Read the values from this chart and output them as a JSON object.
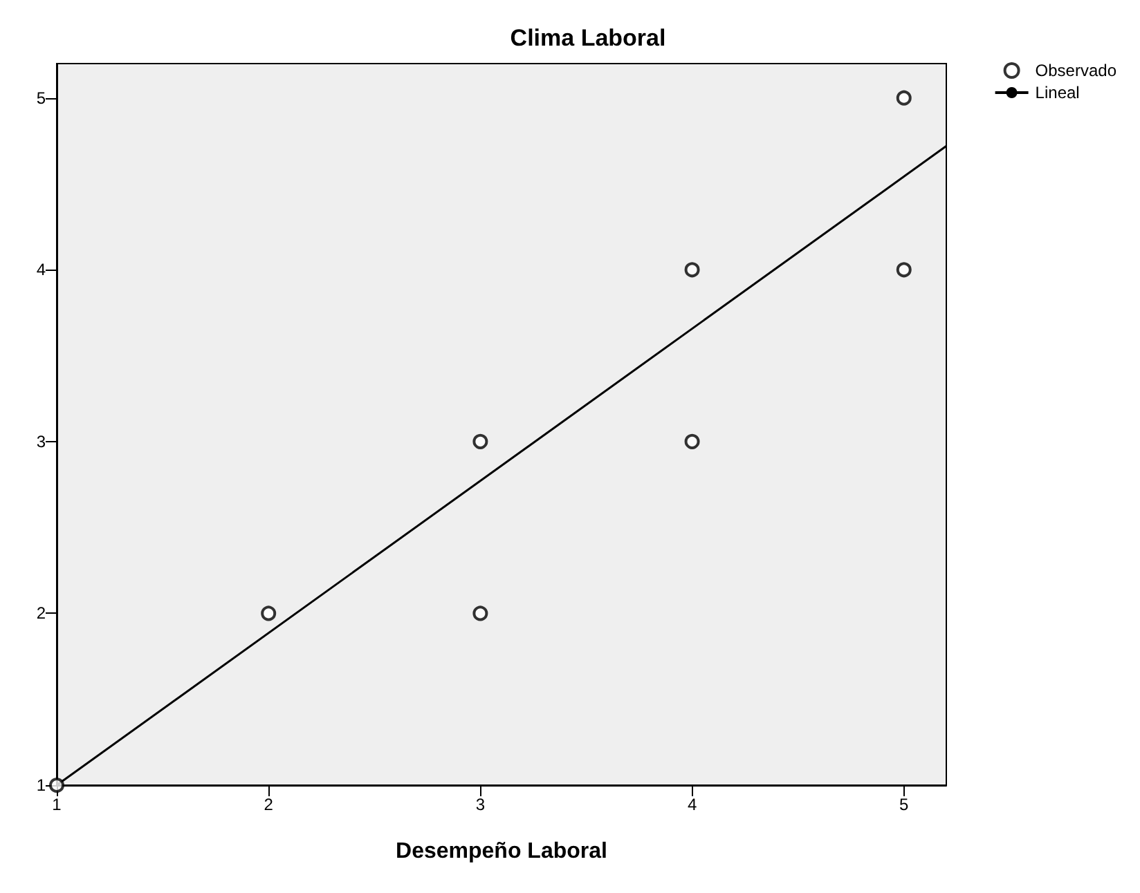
{
  "chart_data": {
    "type": "scatter",
    "title": "Clima Laboral",
    "xlabel": "Desempeño Laboral",
    "xlim": [
      1,
      5.2
    ],
    "ylim": [
      1,
      5.2
    ],
    "xticks": [
      1,
      2,
      3,
      4,
      5
    ],
    "yticks": [
      1,
      2,
      3,
      4,
      5
    ],
    "grid": false,
    "legend": "top right",
    "marker": "circle",
    "series": [
      {
        "name": "Observado",
        "color": "#000000",
        "x": [
          1,
          2,
          3,
          3,
          4,
          4,
          5,
          5
        ],
        "values": [
          1,
          2,
          3,
          2,
          4,
          3,
          5,
          4
        ]
      },
      {
        "name": "Lineal",
        "type": "line",
        "color": "#000000",
        "line_style": "solid",
        "marker": "none",
        "x": [
          1,
          5.2
        ],
        "values": [
          1,
          4.72
        ]
      }
    ]
  }
}
